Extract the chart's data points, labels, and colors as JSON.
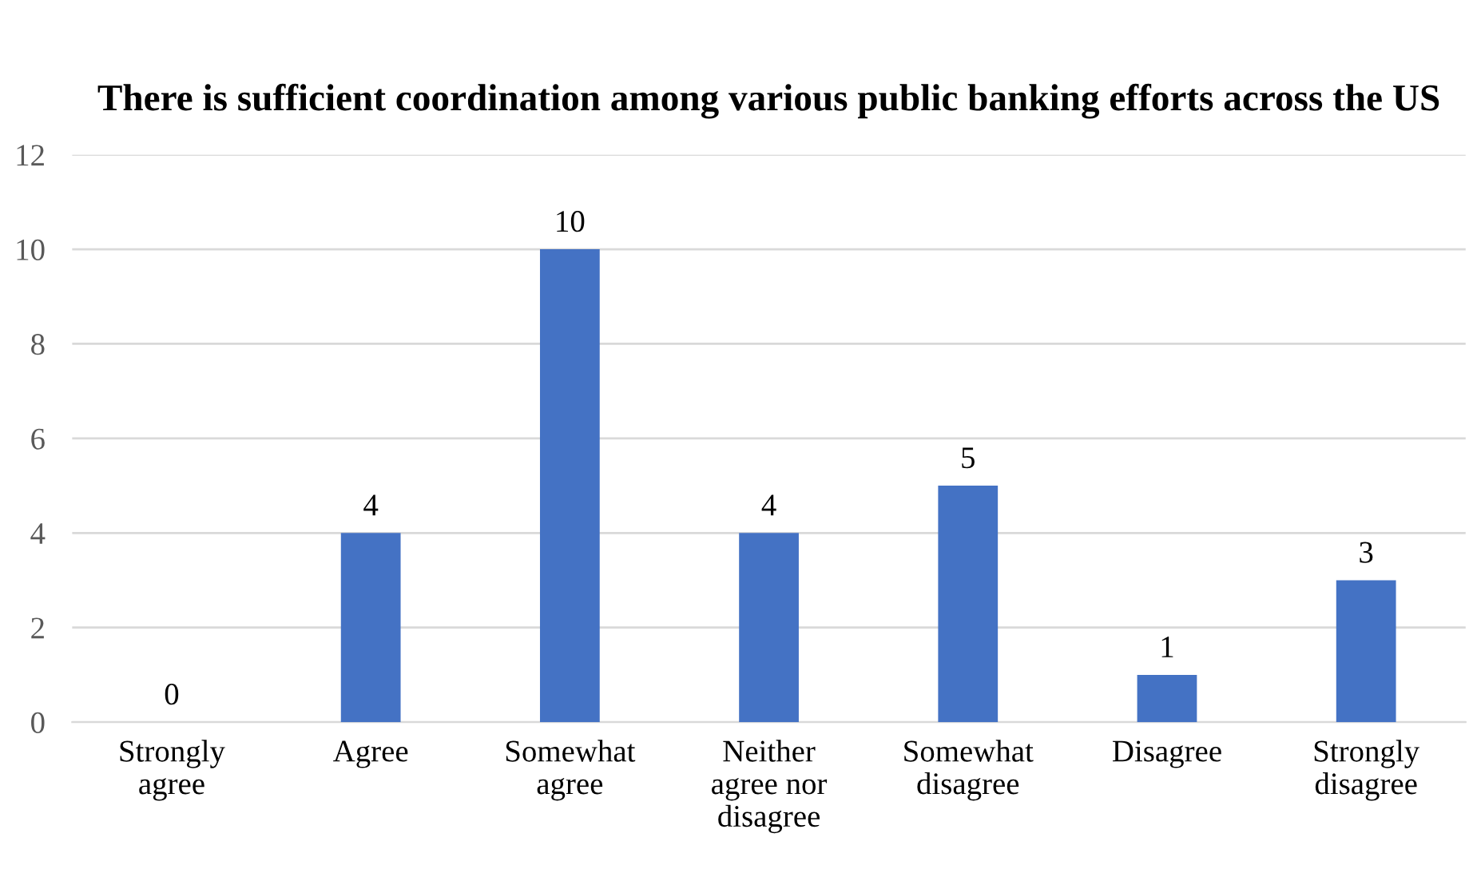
{
  "chart_data": {
    "type": "bar",
    "title": "There is sufficient coordination among various public banking efforts across the US",
    "categories": [
      "Strongly agree",
      "Agree",
      "Somewhat agree",
      "Neither agree nor disagree",
      "Somewhat disagree",
      "Disagree",
      "Strongly disagree"
    ],
    "values": [
      0,
      4,
      10,
      4,
      5,
      1,
      3
    ],
    "color": "#4472c4",
    "ylim": [
      0,
      12
    ],
    "yticks": [
      0,
      2,
      4,
      6,
      8,
      10,
      12
    ],
    "grid": "y",
    "data_labels": true
  }
}
